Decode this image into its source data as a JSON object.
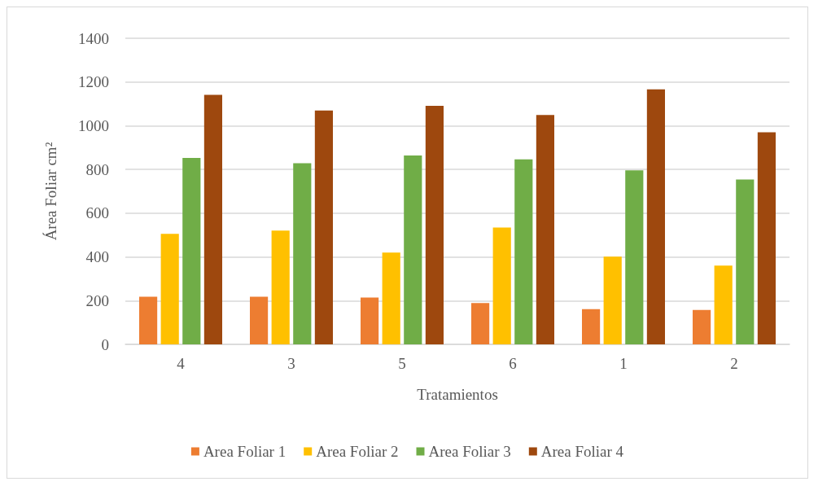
{
  "chart_data": {
    "type": "bar",
    "xlabel": "Tratamientos",
    "ylabel": "Área Foliar cm²",
    "categories": [
      "4",
      "3",
      "5",
      "6",
      "1",
      "2"
    ],
    "series": [
      {
        "name": "Area Foliar 1",
        "color": "#ed7d31",
        "values": [
          218,
          218,
          214,
          189,
          161,
          157
        ]
      },
      {
        "name": "Area Foliar 2",
        "color": "#ffc000",
        "values": [
          505,
          520,
          420,
          534,
          401,
          360
        ]
      },
      {
        "name": "Area Foliar 3",
        "color": "#70ad47",
        "values": [
          853,
          828,
          864,
          846,
          796,
          754
        ]
      },
      {
        "name": "Area Foliar 4",
        "color": "#9e480e",
        "values": [
          1141,
          1070,
          1091,
          1049,
          1166,
          970
        ]
      }
    ],
    "ylim": [
      0,
      1400
    ],
    "yticks": [
      0,
      200,
      400,
      600,
      800,
      1000,
      1200,
      1400
    ],
    "grid": "y",
    "legend": "bottom"
  }
}
